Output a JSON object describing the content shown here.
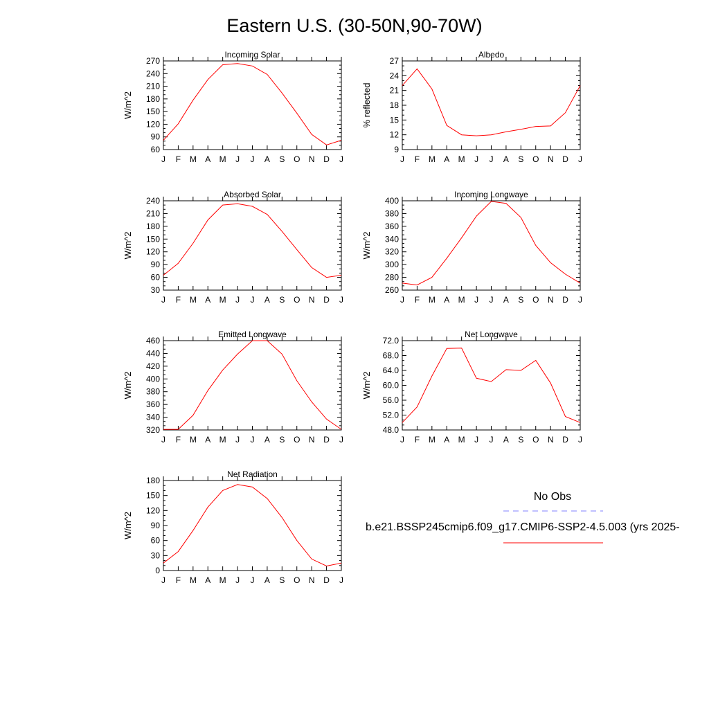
{
  "figure": {
    "title": "Eastern U.S. (30-50N,90-70W)"
  },
  "legend": {
    "entries": [
      {
        "label": "No Obs",
        "color": "#8080ff",
        "style": "dashed"
      },
      {
        "label": "b.e21.BSSP245cmip6.f09_g17.CMIP6-SSP2-4.5.003 (yrs 2025-",
        "color": "#ff0000",
        "style": "solid"
      }
    ]
  },
  "chart_data": [
    {
      "type": "line",
      "title": "Incoming Solar",
      "xlabel": "",
      "ylabel": "W/m^2",
      "categories": [
        "J",
        "F",
        "M",
        "A",
        "M",
        "J",
        "J",
        "A",
        "S",
        "O",
        "N",
        "D",
        "J"
      ],
      "ylim": [
        60,
        270
      ],
      "yticks": [
        "60",
        "90",
        "120",
        "150",
        "180",
        "210",
        "240",
        "270"
      ],
      "grid": false,
      "series": [
        {
          "values": [
            82,
            121,
            177,
            226,
            261,
            264,
            258,
            238,
            194,
            146,
            96,
            71,
            82
          ],
          "color": "#ff0000"
        }
      ]
    },
    {
      "type": "line",
      "title": "Albedo",
      "xlabel": "",
      "ylabel": "% reflected",
      "categories": [
        "J",
        "F",
        "M",
        "A",
        "M",
        "J",
        "J",
        "A",
        "S",
        "O",
        "N",
        "D",
        "J"
      ],
      "ylim": [
        9,
        27
      ],
      "yticks": [
        "9",
        "12",
        "15",
        "18",
        "21",
        "24",
        "27"
      ],
      "grid": false,
      "series": [
        {
          "values": [
            22.0,
            25.4,
            21.3,
            13.9,
            12.0,
            11.8,
            12.0,
            12.6,
            13.1,
            13.7,
            13.8,
            16.5,
            22.0
          ],
          "color": "#ff0000"
        }
      ]
    },
    {
      "type": "line",
      "title": "Absorbed Solar",
      "xlabel": "",
      "ylabel": "W/m^2",
      "categories": [
        "J",
        "F",
        "M",
        "A",
        "M",
        "J",
        "J",
        "A",
        "S",
        "O",
        "N",
        "D",
        "J"
      ],
      "ylim": [
        30,
        240
      ],
      "yticks": [
        "30",
        "60",
        "90",
        "120",
        "150",
        "180",
        "210",
        "240"
      ],
      "grid": false,
      "series": [
        {
          "values": [
            65,
            93,
            140,
            195,
            230,
            233,
            227,
            208,
            168,
            125,
            83,
            60,
            65
          ],
          "color": "#ff0000"
        }
      ]
    },
    {
      "type": "line",
      "title": "Incoming Longwave",
      "xlabel": "",
      "ylabel": "W/m^2",
      "categories": [
        "J",
        "F",
        "M",
        "A",
        "M",
        "J",
        "J",
        "A",
        "S",
        "O",
        "N",
        "D",
        "J"
      ],
      "ylim": [
        260,
        400
      ],
      "yticks": [
        "260",
        "280",
        "300",
        "320",
        "340",
        "360",
        "380",
        "400"
      ],
      "grid": false,
      "series": [
        {
          "values": [
            271,
            268,
            280,
            310,
            342,
            376,
            399,
            396,
            374,
            330,
            303,
            285,
            271
          ],
          "color": "#ff0000"
        }
      ]
    },
    {
      "type": "line",
      "title": "Emitted Longwave",
      "xlabel": "",
      "ylabel": "W/m^2",
      "categories": [
        "J",
        "F",
        "M",
        "A",
        "M",
        "J",
        "J",
        "A",
        "S",
        "O",
        "N",
        "D",
        "J"
      ],
      "ylim": [
        320,
        460
      ],
      "yticks": [
        "320",
        "340",
        "360",
        "380",
        "400",
        "420",
        "440",
        "460"
      ],
      "grid": false,
      "series": [
        {
          "values": [
            321,
            321,
            343,
            382,
            414,
            439,
            460,
            460,
            439,
            397,
            364,
            337,
            321
          ],
          "color": "#ff0000"
        }
      ]
    },
    {
      "type": "line",
      "title": "Net Longwave",
      "xlabel": "",
      "ylabel": "W/m^2",
      "categories": [
        "J",
        "F",
        "M",
        "A",
        "M",
        "J",
        "J",
        "A",
        "S",
        "O",
        "N",
        "D",
        "J"
      ],
      "ylim": [
        48,
        72
      ],
      "yticks": [
        "48.0",
        "52.0",
        "56.0",
        "60.0",
        "64.0",
        "68.0",
        "72.0"
      ],
      "grid": false,
      "series": [
        {
          "values": [
            50.0,
            54.2,
            62.5,
            69.9,
            70.0,
            61.9,
            61.0,
            64.2,
            64.0,
            66.7,
            60.6,
            51.6,
            50.0
          ],
          "color": "#ff0000"
        }
      ]
    },
    {
      "type": "line",
      "title": "Net Radiation",
      "xlabel": "",
      "ylabel": "W/m^2",
      "categories": [
        "J",
        "F",
        "M",
        "A",
        "M",
        "J",
        "J",
        "A",
        "S",
        "O",
        "N",
        "D",
        "J"
      ],
      "ylim": [
        0,
        180
      ],
      "yticks": [
        "0",
        "30",
        "60",
        "90",
        "120",
        "150",
        "180"
      ],
      "grid": false,
      "series": [
        {
          "values": [
            15,
            38,
            80,
            127,
            160,
            172,
            167,
            144,
            106,
            60,
            23,
            9,
            15
          ],
          "color": "#ff0000"
        }
      ]
    }
  ]
}
